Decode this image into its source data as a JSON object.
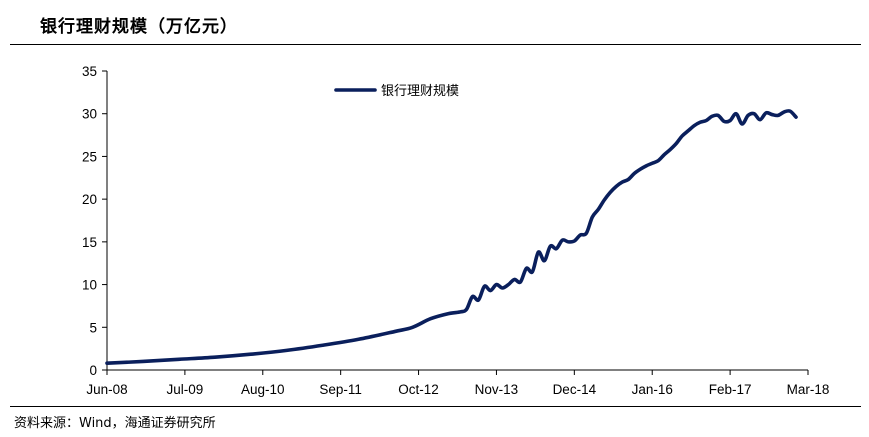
{
  "title": "银行理财规模（万亿元）",
  "source": "资料来源：Wind，海通证券研究所",
  "chart_data": {
    "type": "line",
    "title": "银行理财规模（万亿元）",
    "xlabel": "",
    "ylabel": "",
    "x_tick_labels": [
      "Jun-08",
      "Jul-09",
      "Aug-10",
      "Sep-11",
      "Oct-12",
      "Nov-13",
      "Dec-14",
      "Jan-16",
      "Feb-17",
      "Mar-18"
    ],
    "x_tick_months": [
      "2008-06",
      "2009-07",
      "2010-08",
      "2011-09",
      "2012-10",
      "2013-11",
      "2014-12",
      "2016-01",
      "2017-02",
      "2018-03"
    ],
    "ylim": [
      0,
      35
    ],
    "y_ticks": [
      0,
      5,
      10,
      15,
      20,
      25,
      30,
      35
    ],
    "grid": false,
    "legend_position": "top-center",
    "line_color": "#0a1f5c",
    "series": [
      {
        "name": "银行理财规模",
        "points": [
          [
            "2008-06",
            0.8
          ],
          [
            "2008-12",
            1.0
          ],
          [
            "2009-06",
            1.25
          ],
          [
            "2009-12",
            1.5
          ],
          [
            "2010-06",
            1.85
          ],
          [
            "2010-12",
            2.3
          ],
          [
            "2011-06",
            2.9
          ],
          [
            "2011-12",
            3.6
          ],
          [
            "2012-06",
            4.5
          ],
          [
            "2012-09",
            5.0
          ],
          [
            "2012-12",
            6.0
          ],
          [
            "2013-03",
            6.6
          ],
          [
            "2013-05",
            6.8
          ],
          [
            "2013-06",
            7.1
          ],
          [
            "2013-07",
            8.6
          ],
          [
            "2013-08",
            8.2
          ],
          [
            "2013-09",
            9.8
          ],
          [
            "2013-10",
            9.3
          ],
          [
            "2013-11",
            10.0
          ],
          [
            "2013-12",
            9.6
          ],
          [
            "2014-01",
            10.0
          ],
          [
            "2014-02",
            10.6
          ],
          [
            "2014-03",
            10.3
          ],
          [
            "2014-04",
            11.9
          ],
          [
            "2014-05",
            11.5
          ],
          [
            "2014-06",
            13.8
          ],
          [
            "2014-07",
            12.8
          ],
          [
            "2014-08",
            14.5
          ],
          [
            "2014-09",
            14.2
          ],
          [
            "2014-10",
            15.2
          ],
          [
            "2014-11",
            15.0
          ],
          [
            "2014-12",
            15.1
          ],
          [
            "2015-01",
            15.8
          ],
          [
            "2015-02",
            16.0
          ],
          [
            "2015-03",
            17.9
          ],
          [
            "2015-04",
            18.8
          ],
          [
            "2015-05",
            19.9
          ],
          [
            "2015-06",
            20.8
          ],
          [
            "2015-07",
            21.5
          ],
          [
            "2015-08",
            22.0
          ],
          [
            "2015-09",
            22.3
          ],
          [
            "2015-10",
            23.0
          ],
          [
            "2015-11",
            23.5
          ],
          [
            "2015-12",
            23.9
          ],
          [
            "2016-01",
            24.2
          ],
          [
            "2016-02",
            24.5
          ],
          [
            "2016-03",
            25.2
          ],
          [
            "2016-04",
            25.8
          ],
          [
            "2016-05",
            26.5
          ],
          [
            "2016-06",
            27.4
          ],
          [
            "2016-07",
            28.0
          ],
          [
            "2016-08",
            28.6
          ],
          [
            "2016-09",
            29.0
          ],
          [
            "2016-10",
            29.2
          ],
          [
            "2016-11",
            29.7
          ],
          [
            "2016-12",
            29.8
          ],
          [
            "2017-01",
            29.1
          ],
          [
            "2017-02",
            29.2
          ],
          [
            "2017-03",
            30.0
          ],
          [
            "2017-04",
            28.8
          ],
          [
            "2017-05",
            29.8
          ],
          [
            "2017-06",
            30.0
          ],
          [
            "2017-07",
            29.3
          ],
          [
            "2017-08",
            30.1
          ],
          [
            "2017-09",
            29.9
          ],
          [
            "2017-10",
            29.8
          ],
          [
            "2017-11",
            30.2
          ],
          [
            "2017-12",
            30.3
          ],
          [
            "2018-01",
            29.6
          ]
        ]
      }
    ]
  }
}
